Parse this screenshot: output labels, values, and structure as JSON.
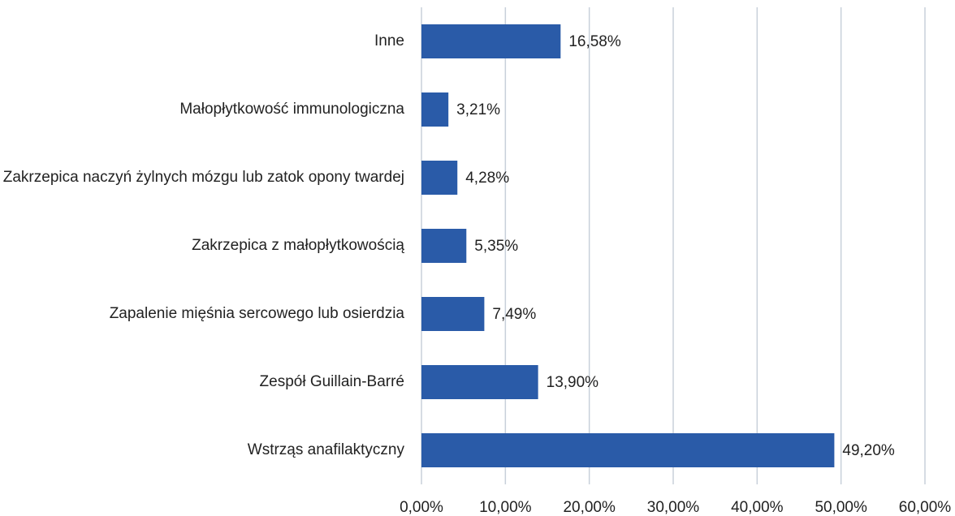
{
  "chart_data": {
    "type": "bar",
    "orientation": "horizontal",
    "categories": [
      "Inne",
      "Małopłytkowość immunologiczna",
      "Zakrzepica naczyń żylnych mózgu lub zatok opony twardej",
      "Zakrzepica z małopłytkowością",
      "Zapalenie mięśnia sercowego lub osierdzia",
      "Zespół Guillain-Barré",
      "Wstrząs anafilaktyczny"
    ],
    "values": [
      16.58,
      3.21,
      4.28,
      5.35,
      7.49,
      13.9,
      49.2
    ],
    "value_labels": [
      "16,58%",
      "3,21%",
      "4,28%",
      "5,35%",
      "7,49%",
      "13,90%",
      "49,20%"
    ],
    "color": "#2a5ba8",
    "xlim": [
      0,
      60
    ],
    "xticks": [
      {
        "value": 0,
        "label": "0,00%"
      },
      {
        "value": 10,
        "label": "10,00%"
      },
      {
        "value": 20,
        "label": "20,00%"
      },
      {
        "value": 30,
        "label": "30,00%"
      },
      {
        "value": 40,
        "label": "40,00%"
      },
      {
        "value": 50,
        "label": "50,00%"
      },
      {
        "value": 60,
        "label": "60,00%"
      }
    ],
    "grid": true
  }
}
